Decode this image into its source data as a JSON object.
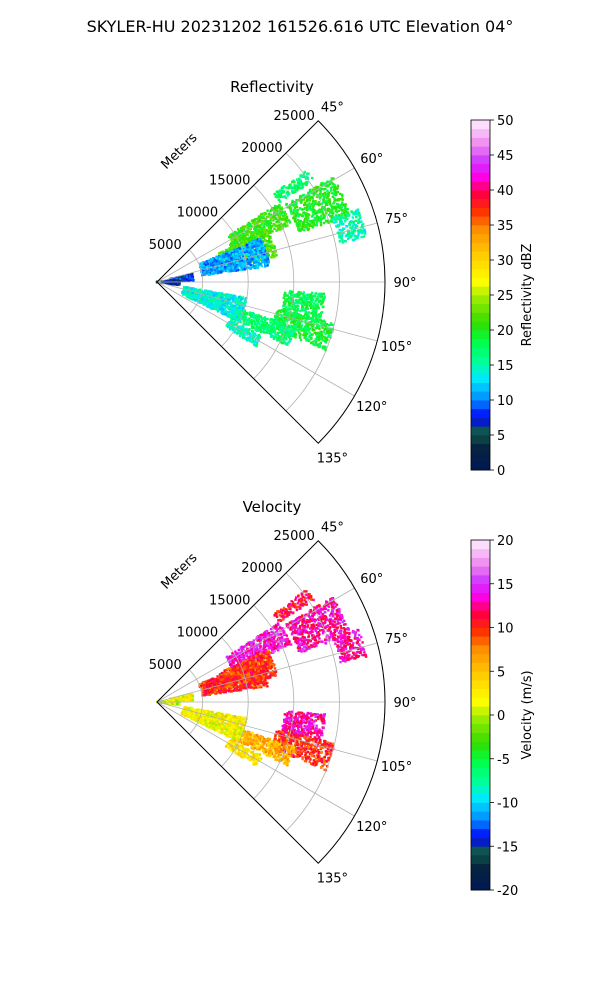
{
  "suptitle": "SKYLER-HU  20231202  161526.616 UTC Elevation 04°",
  "chart_data": [
    {
      "type": "polar-sector",
      "title": "Reflectivity",
      "range_label": "Meters",
      "range_ticks": [
        5000,
        10000,
        15000,
        20000,
        25000
      ],
      "range_max": 25000,
      "azimuth_ticks": [
        "45°",
        "60°",
        "75°",
        "90°",
        "105°",
        "120°",
        "135°"
      ],
      "azimuth_range": [
        45,
        135
      ],
      "colorbar": {
        "label": "Reflectivity dBZ",
        "min": 0,
        "max": 50,
        "ticks": [
          0,
          5,
          10,
          15,
          20,
          25,
          30,
          35,
          40,
          45,
          50
        ]
      },
      "echo_bands": [
        {
          "az": [
            53,
            57
          ],
          "r": [
            16000,
            20500
          ],
          "value": 17
        },
        {
          "az": [
            59,
            71
          ],
          "r": [
            16500,
            22500
          ],
          "value": 20
        },
        {
          "az": [
            70,
            78
          ],
          "r": [
            20500,
            23500
          ],
          "value": 15
        },
        {
          "az": [
            57,
            67
          ],
          "r": [
            9000,
            16000
          ],
          "value": 21
        },
        {
          "az": [
            65,
            78
          ],
          "r": [
            7500,
            13500
          ],
          "value": 22
        },
        {
          "az": [
            67,
            82
          ],
          "r": [
            5000,
            12500
          ],
          "value": 11
        },
        {
          "az": [
            77,
            88
          ],
          "r": [
            1500,
            4000
          ],
          "value": 8
        },
        {
          "az": [
            84,
            98
          ],
          "r": [
            0,
            2500
          ],
          "value": 6
        },
        {
          "az": [
            94,
            104
          ],
          "r": [
            14000,
            18500
          ],
          "value": 18
        },
        {
          "az": [
            103,
            112
          ],
          "r": [
            13500,
            20000
          ],
          "value": 19
        },
        {
          "az": [
            108,
            116
          ],
          "r": [
            9000,
            16000
          ],
          "value": 17
        },
        {
          "az": [
            100,
            116
          ],
          "r": [
            3000,
            10000
          ],
          "value": 14
        },
        {
          "az": [
            117,
            123
          ],
          "r": [
            9000,
            13000
          ],
          "value": 15
        }
      ]
    },
    {
      "type": "polar-sector",
      "title": "Velocity",
      "range_label": "Meters",
      "range_ticks": [
        5000,
        10000,
        15000,
        20000,
        25000
      ],
      "range_max": 25000,
      "azimuth_ticks": [
        "45°",
        "60°",
        "75°",
        "90°",
        "105°",
        "120°",
        "135°"
      ],
      "azimuth_range": [
        45,
        135
      ],
      "colorbar": {
        "label": "Velocity (m/s)",
        "min": -20,
        "max": 20,
        "ticks": [
          -20,
          -15,
          -10,
          -5,
          0,
          5,
          10,
          15,
          20
        ]
      },
      "echo_bands": [
        {
          "az": [
            53,
            57
          ],
          "r": [
            16000,
            20500
          ],
          "value": 11
        },
        {
          "az": [
            59,
            71
          ],
          "r": [
            16500,
            22500
          ],
          "value": 13
        },
        {
          "az": [
            70,
            78
          ],
          "r": [
            20500,
            23500
          ],
          "value": 13
        },
        {
          "az": [
            57,
            67
          ],
          "r": [
            9000,
            16000
          ],
          "value": 14
        },
        {
          "az": [
            65,
            78
          ],
          "r": [
            7500,
            13500
          ],
          "value": 10
        },
        {
          "az": [
            67,
            82
          ],
          "r": [
            5000,
            12500
          ],
          "value": 10
        },
        {
          "az": [
            77,
            88
          ],
          "r": [
            1500,
            4000
          ],
          "value": 2
        },
        {
          "az": [
            84,
            98
          ],
          "r": [
            0,
            2500
          ],
          "value": 1
        },
        {
          "az": [
            94,
            104
          ],
          "r": [
            14000,
            18500
          ],
          "value": 13
        },
        {
          "az": [
            103,
            112
          ],
          "r": [
            13500,
            20000
          ],
          "value": 10
        },
        {
          "az": [
            108,
            116
          ],
          "r": [
            9000,
            16000
          ],
          "value": 6
        },
        {
          "az": [
            100,
            116
          ],
          "r": [
            3000,
            10000
          ],
          "value": 2
        },
        {
          "az": [
            117,
            123
          ],
          "r": [
            9000,
            13000
          ],
          "value": 3
        }
      ]
    }
  ]
}
